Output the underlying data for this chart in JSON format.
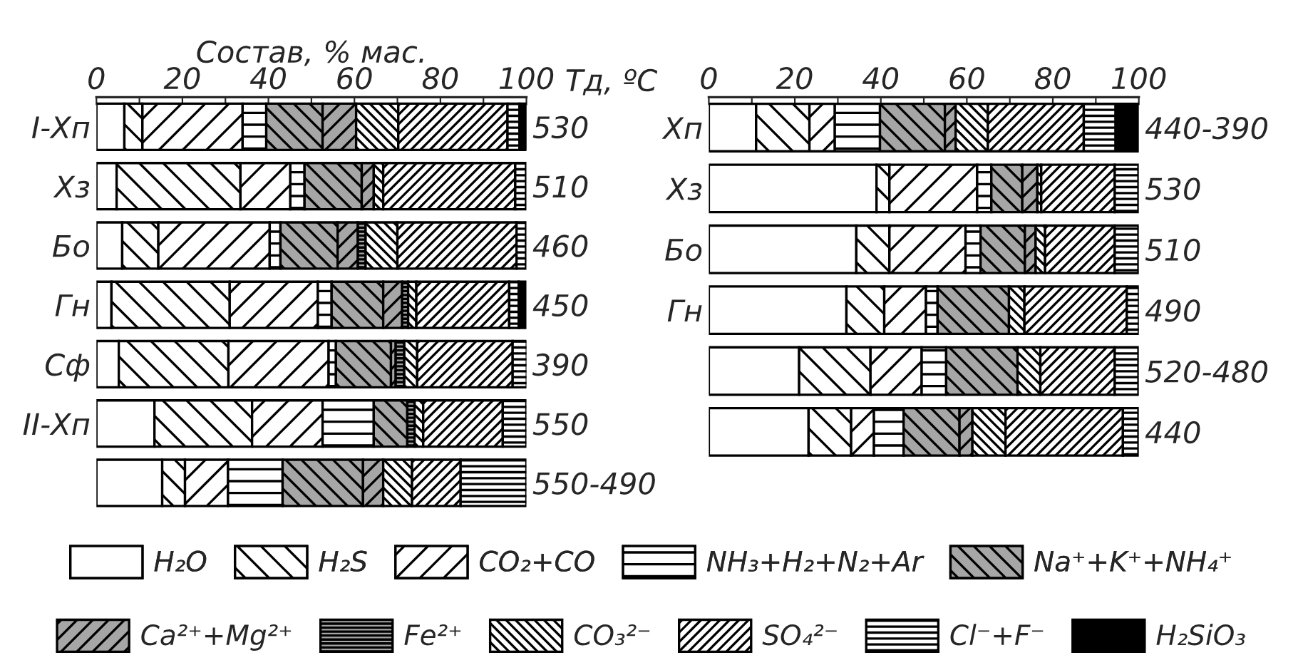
{
  "chart_data": [
    {
      "type": "bar",
      "orientation": "horizontal",
      "stacked": true,
      "xlabel": "Состав, % мас.",
      "y2label": "Тд, ºС",
      "categories": [
        "I-Хп",
        "Хз",
        "Бо",
        "Гн",
        "Сф",
        "II-Хп",
        null
      ],
      "y2_categories": [
        "530",
        "510",
        "460",
        "450",
        "390",
        "550",
        "550-490"
      ],
      "xlim": [
        0,
        100
      ],
      "xticks": [
        0,
        {
          "value": 10,
          "label": null
        },
        20,
        {
          "value": 30,
          "label": null
        },
        40,
        {
          "value": 50,
          "label": null
        },
        60,
        {
          "value": 70,
          "label": null
        },
        80,
        {
          "value": 90,
          "label": null
        },
        100
      ],
      "legend": "bottom",
      "series": [
        {
          "name": "H₂O",
          "color": "#ffffff",
          "values": [
            6.5,
            4.7,
            6.0,
            3.5,
            5.2,
            13.5,
            15.3
          ]
        },
        {
          "name": "H₂S",
          "color": "#ffffff",
          "values": [
            4.2,
            28.8,
            8.4,
            27.5,
            25.5,
            22.7,
            5.3
          ]
        },
        {
          "name": "CO₂+CO",
          "color": "#ffffff",
          "values": [
            23.3,
            11.6,
            25.9,
            20.5,
            23.3,
            16.4,
            10.0
          ]
        },
        {
          "name": "NH₃+H₂+N₂+Ar",
          "color": "#ffffff",
          "values": [
            5.5,
            3.3,
            2.5,
            3.2,
            1.7,
            11.9,
            12.7
          ]
        },
        {
          "name": "Na⁺+K⁺+NH₄⁺",
          "color": "#a6a6a6",
          "values": [
            13.1,
            13.3,
            13.3,
            12.0,
            12.8,
            7.8,
            18.7
          ]
        },
        {
          "name": "Ca²⁺+Mg²⁺",
          "color": "#a6a6a6",
          "values": [
            7.8,
            2.8,
            4.7,
            4.4,
            1.1,
            null,
            4.7
          ]
        },
        {
          "name": "Fe²⁺",
          "color": "#a6a6a6",
          "values": [
            null,
            null,
            1.8,
            1.4,
            2.0,
            1.7,
            null
          ]
        },
        {
          "name": "CO₃²⁻",
          "color": "#ffffff",
          "values": [
            9.8,
            2.2,
            7.4,
            1.9,
            3.0,
            2.0,
            6.7
          ]
        },
        {
          "name": "SO₄²⁻",
          "color": "#ffffff",
          "values": [
            25.4,
            30.7,
            27.7,
            21.6,
            22.2,
            18.5,
            11.3
          ]
        },
        {
          "name": "Cl⁻+F⁻",
          "color": "#ffffff",
          "values": [
            2.8,
            2.5,
            2.2,
            2.2,
            3.3,
            5.5,
            15.3
          ]
        },
        {
          "name": "H₂SiO₃",
          "color": "#000000",
          "values": [
            1.7,
            null,
            null,
            1.7,
            null,
            null,
            null
          ]
        }
      ]
    },
    {
      "type": "bar",
      "orientation": "horizontal",
      "stacked": true,
      "categories": [
        "Хп",
        "Хз",
        "Бо",
        "Гн",
        null,
        null
      ],
      "y2_categories": [
        "440-390",
        "530",
        "510",
        "490",
        "520-480",
        "440"
      ],
      "xlim": [
        0,
        100
      ],
      "xticks": [
        0,
        {
          "value": 10,
          "label": null
        },
        20,
        {
          "value": 30,
          "label": null
        },
        40,
        {
          "value": 50,
          "label": null
        },
        60,
        {
          "value": 70,
          "label": null
        },
        80,
        {
          "value": 90,
          "label": null
        },
        100
      ],
      "series": [
        {
          "color": "#ffffff",
          "values": [
            11.0,
            39.0,
            34.3,
            32.0,
            21.0,
            23.2
          ]
        },
        {
          "color": "#ffffff",
          "values": [
            12.4,
            3.0,
            7.7,
            8.8,
            16.6,
            9.9
          ]
        },
        {
          "color": "#ffffff",
          "values": [
            5.9,
            20.4,
            17.7,
            9.7,
            11.9,
            5.3
          ]
        },
        {
          "color": "#ffffff",
          "values": [
            10.5,
            3.3,
            3.5,
            2.7,
            5.7,
            6.9
          ]
        },
        {
          "color": "#a6a6a6",
          "values": [
            15.1,
            7.2,
            10.3,
            16.6,
            16.6,
            13.0
          ]
        },
        {
          "color": "#a6a6a6",
          "values": [
            2.5,
            3.5,
            2.5,
            null,
            null,
            3.0
          ]
        },
        {
          "color": "#ffffff",
          "values": [
            7.5,
            0.9,
            2.2,
            3.6,
            5.3,
            7.7
          ]
        },
        {
          "color": "#ffffff",
          "values": [
            22.3,
            17.1,
            16.2,
            23.8,
            17.3,
            27.3
          ]
        },
        {
          "color": "#ffffff",
          "values": [
            7.4,
            5.5,
            5.5,
            2.8,
            5.5,
            3.6
          ]
        },
        {
          "color": "#000000",
          "values": [
            5.3,
            null,
            null,
            null,
            null,
            null
          ]
        }
      ]
    }
  ]
}
